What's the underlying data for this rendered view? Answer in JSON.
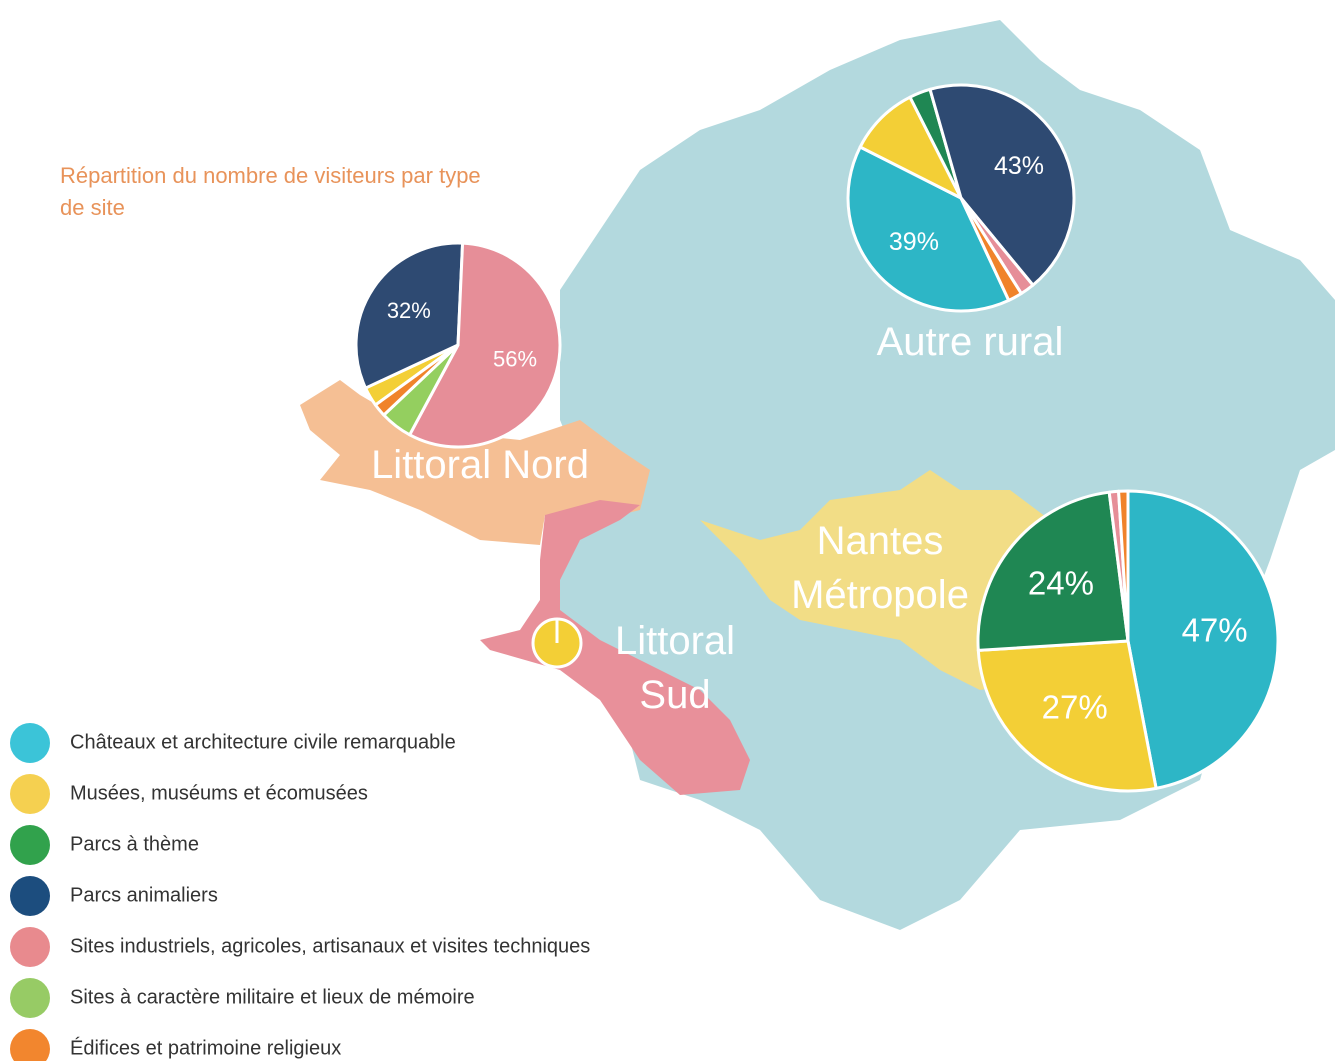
{
  "chart_data": {
    "type": "pie-map",
    "title": "Répartition du nombre de visiteurs par type de site",
    "categories": [
      "Châteaux et architecture civile remarquable",
      "Musées, muséums et écomusées",
      "Parcs à thème",
      "Parcs animaliers",
      "Sites industriels, agricoles, artisanaux et visites techniques",
      "Sites à caractère militaire et lieux de mémoire",
      "Édifices et patrimoine religieux"
    ],
    "colors": [
      "#2db6c6",
      "#f3cf36",
      "#1f8753",
      "#2e4a72",
      "#e68e98",
      "#94cf5f",
      "#f0832a"
    ],
    "legend_colors": [
      "#3bc4d8",
      "#f5d050",
      "#31a24c",
      "#1c4d7e",
      "#e88a8e",
      "#97cb65",
      "#f2862e"
    ],
    "pies": [
      {
        "name": "Autre rural",
        "values": [
          39,
          10,
          3,
          43,
          2,
          null,
          2
        ],
        "value_labels": [
          "39%",
          null,
          null,
          "43%",
          null,
          null,
          null
        ]
      },
      {
        "name": "Littoral Nord",
        "values": [
          null,
          3,
          null,
          32,
          56,
          5,
          2
        ],
        "value_labels": [
          null,
          null,
          null,
          "32%",
          "56%",
          null,
          null
        ]
      },
      {
        "name": "Nantes Métropole",
        "values": [
          47,
          27,
          24,
          null,
          1,
          null,
          1
        ],
        "value_labels": [
          "47%",
          "27%",
          "24%",
          null,
          null,
          null,
          null
        ]
      },
      {
        "name": "Littoral Sud",
        "values": [
          null,
          100,
          null,
          null,
          null,
          null,
          null
        ],
        "value_labels": [
          null,
          null,
          null,
          null,
          null,
          null,
          null
        ]
      }
    ]
  }
}
